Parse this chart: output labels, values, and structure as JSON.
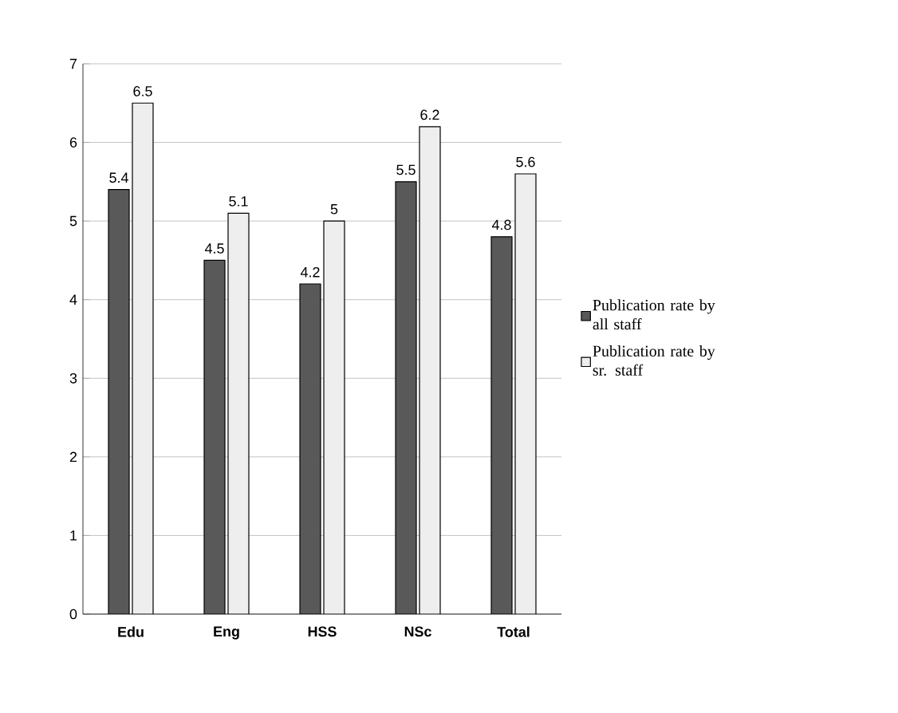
{
  "chart_data": {
    "type": "bar",
    "categories": [
      "Edu",
      "Eng",
      "HSS",
      "NSc",
      "Total"
    ],
    "series": [
      {
        "name": "Publication rate by all staff",
        "color": "#595959",
        "values": [
          5.4,
          4.5,
          4.2,
          5.5,
          4.8
        ]
      },
      {
        "name": "Publication rate by sr. staff",
        "color": "#eeeeee",
        "values": [
          6.5,
          5.1,
          5,
          6.2,
          5.6
        ]
      }
    ],
    "ylim": [
      0,
      7
    ],
    "yticks": [
      0,
      1,
      2,
      3,
      4,
      5,
      6,
      7
    ],
    "grid": "y",
    "legend": "right",
    "data_labels": true
  }
}
